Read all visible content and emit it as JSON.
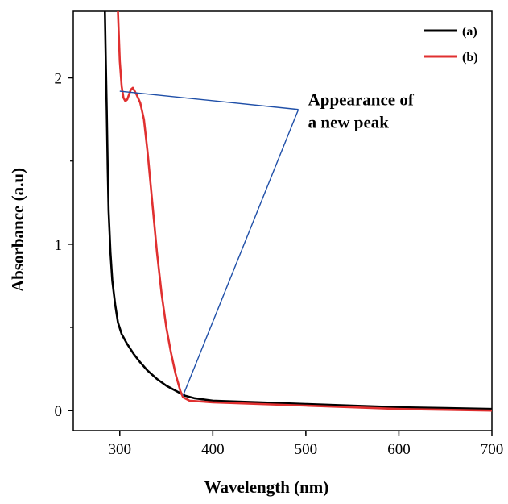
{
  "chart_data": {
    "type": "line",
    "title": "",
    "xlabel": "Wavelength (nm)",
    "ylabel": "Absorbance (a.u)",
    "xlim": [
      250,
      700
    ],
    "ylim": [
      -0.12,
      2.4
    ],
    "x_ticks": [
      300,
      400,
      500,
      600,
      700
    ],
    "y_ticks": [
      0,
      1,
      2
    ],
    "x_tick_labels": [
      "300",
      "400",
      "500",
      "600",
      "700"
    ],
    "y_tick_labels": [
      "0",
      "1",
      "2"
    ],
    "grid": false,
    "legend_position": "top-right",
    "series": [
      {
        "name": "(a)",
        "color": "#000000",
        "points": [
          [
            284,
            2.4
          ],
          [
            285,
            2.1
          ],
          [
            286,
            1.8
          ],
          [
            287,
            1.45
          ],
          [
            288,
            1.2
          ],
          [
            290,
            0.95
          ],
          [
            292,
            0.78
          ],
          [
            295,
            0.64
          ],
          [
            298,
            0.53
          ],
          [
            302,
            0.46
          ],
          [
            308,
            0.4
          ],
          [
            315,
            0.34
          ],
          [
            322,
            0.29
          ],
          [
            330,
            0.24
          ],
          [
            340,
            0.19
          ],
          [
            350,
            0.15
          ],
          [
            360,
            0.12
          ],
          [
            370,
            0.09
          ],
          [
            380,
            0.075
          ],
          [
            400,
            0.06
          ],
          [
            450,
            0.05
          ],
          [
            500,
            0.04
          ],
          [
            550,
            0.03
          ],
          [
            600,
            0.02
          ],
          [
            650,
            0.015
          ],
          [
            700,
            0.01
          ]
        ]
      },
      {
        "name": "(b)",
        "color": "#e03030",
        "points": [
          [
            298,
            2.4
          ],
          [
            300,
            2.1
          ],
          [
            302,
            1.95
          ],
          [
            304,
            1.88
          ],
          [
            306,
            1.86
          ],
          [
            308,
            1.87
          ],
          [
            310,
            1.9
          ],
          [
            312,
            1.93
          ],
          [
            314,
            1.94
          ],
          [
            316,
            1.92
          ],
          [
            318,
            1.9
          ],
          [
            322,
            1.85
          ],
          [
            326,
            1.75
          ],
          [
            330,
            1.55
          ],
          [
            335,
            1.25
          ],
          [
            340,
            0.95
          ],
          [
            345,
            0.7
          ],
          [
            350,
            0.5
          ],
          [
            355,
            0.35
          ],
          [
            360,
            0.22
          ],
          [
            365,
            0.12
          ],
          [
            368,
            0.08
          ],
          [
            375,
            0.06
          ],
          [
            400,
            0.05
          ],
          [
            450,
            0.04
          ],
          [
            500,
            0.03
          ],
          [
            550,
            0.02
          ],
          [
            600,
            0.01
          ],
          [
            650,
            0.005
          ],
          [
            700,
            0.0
          ]
        ]
      }
    ],
    "annotation": {
      "lines": [
        "Appearance of",
        "a new peak"
      ],
      "peak_point": [
        300,
        1.92
      ],
      "base_point": [
        368,
        0.09
      ],
      "label_point": [
        492,
        1.81
      ],
      "line_color": "#1f4fa8"
    }
  }
}
